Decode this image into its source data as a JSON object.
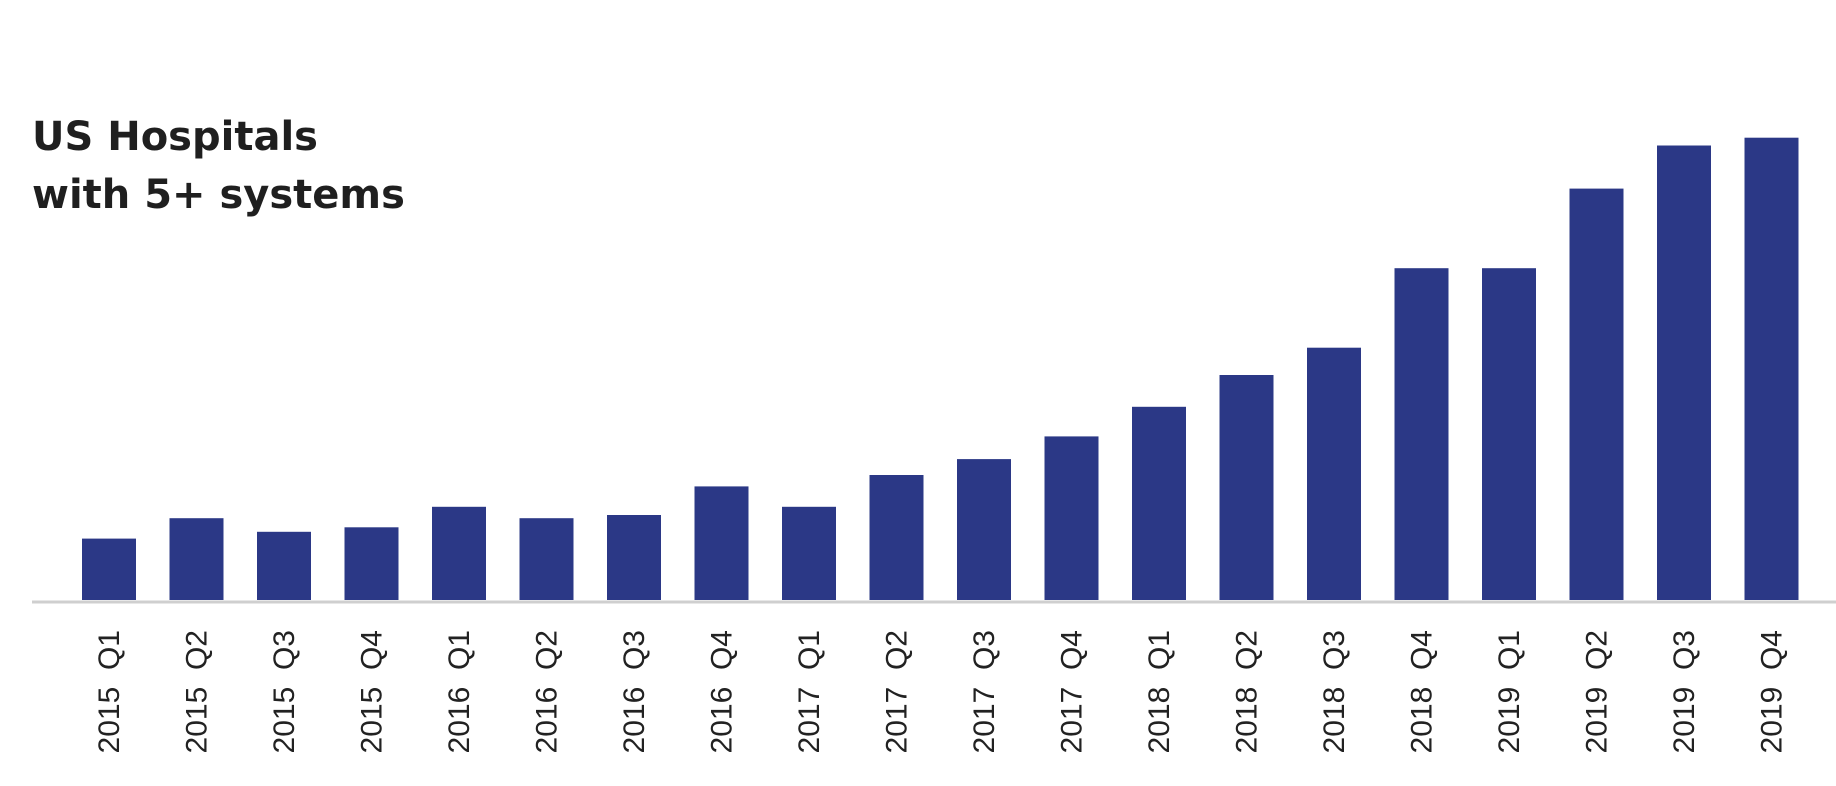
{
  "chart_data": {
    "type": "bar",
    "title_lines": [
      "US Hospitals",
      "with 5+ systems"
    ],
    "xlabel": "",
    "ylabel": "",
    "categories": [
      "2015 Q1",
      "2015 Q2",
      "2015 Q3",
      "2015 Q4",
      "2016 Q1",
      "2016 Q2",
      "2016 Q3",
      "2016 Q4",
      "2017 Q1",
      "2017 Q2",
      "2017 Q3",
      "2017 Q4",
      "2018 Q1",
      "2018 Q2",
      "2018 Q3",
      "2018 Q4",
      "2019 Q1",
      "2019 Q2",
      "2019 Q3",
      "2019 Q4"
    ],
    "values": [
      13.5,
      18,
      15,
      16,
      20.5,
      18,
      18.7,
      25,
      20.5,
      27.5,
      31,
      36,
      42.5,
      49.5,
      55.5,
      73,
      73,
      90.5,
      100,
      101.7
    ],
    "ylim": [
      0,
      110
    ],
    "y_axis_shown": false,
    "grid": false,
    "bar_color": "#2b3886",
    "baseline_color": "#cfcfcf"
  }
}
